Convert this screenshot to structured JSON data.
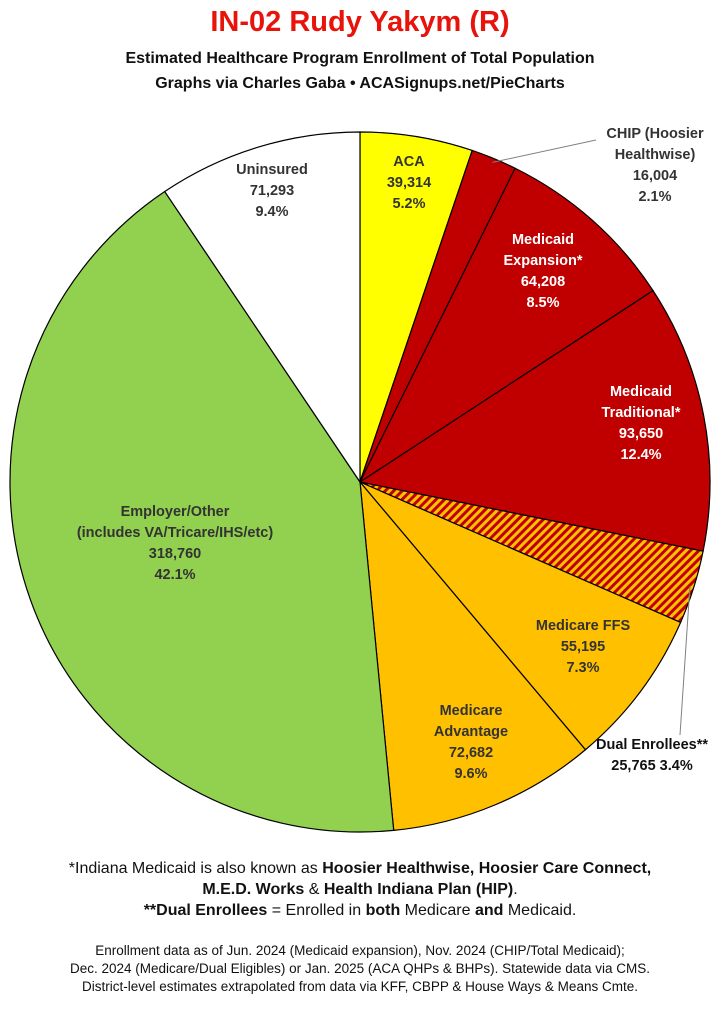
{
  "title": "IN-02 Rudy Yakym (R)",
  "subtitle_line1": "Estimated Healthcare Program Enrollment of Total Population",
  "subtitle_line2": "Graphs via Charles Gaba  •  ACASignups.net/PieCharts",
  "colors": {
    "title": "#e8140c",
    "aca": "#ffff00",
    "medicaid": "#c00000",
    "medicare": "#ffc000",
    "employer": "#92d050",
    "uninsured": "#ffffff",
    "dual_stripe_a": "#c00000",
    "dual_stripe_b": "#ffc000"
  },
  "chart_data": {
    "type": "pie",
    "title": "IN-02 Rudy Yakym (R)",
    "subtitle": "Estimated Healthcare Program Enrollment of Total Population",
    "start": "12 o'clock",
    "direction": "clockwise",
    "slices": [
      {
        "key": "aca",
        "label": "ACA",
        "value": 39314,
        "value_text": "39,314",
        "percent": 5.2,
        "percent_text": "5.2%",
        "color": "#ffff00",
        "text_color": "#333333"
      },
      {
        "key": "chip",
        "label": "CHIP (Hoosier Healthwise)",
        "value": 16004,
        "value_text": "16,004",
        "percent": 2.1,
        "percent_text": "2.1%",
        "color": "#c00000",
        "text_color": "#333333"
      },
      {
        "key": "medicaid_expansion",
        "label": "Medicaid Expansion*",
        "value": 64208,
        "value_text": "64,208",
        "percent": 8.5,
        "percent_text": "8.5%",
        "color": "#c00000",
        "text_color": "#ffffff"
      },
      {
        "key": "medicaid_traditional",
        "label": "Medicaid Traditional*",
        "value": 93650,
        "value_text": "93,650",
        "percent": 12.4,
        "percent_text": "12.4%",
        "color": "#c00000",
        "text_color": "#ffffff"
      },
      {
        "key": "dual",
        "label": "Dual Enrollees**",
        "value": 25765,
        "value_text": "25,765",
        "percent": 3.4,
        "percent_text": "3.4%",
        "color": "striped",
        "text_color": "#111111"
      },
      {
        "key": "medicare_ffs",
        "label": "Medicare FFS",
        "value": 55195,
        "value_text": "55,195",
        "percent": 7.3,
        "percent_text": "7.3%",
        "color": "#ffc000",
        "text_color": "#333333"
      },
      {
        "key": "medicare_advantage",
        "label": "Medicare Advantage",
        "value": 72682,
        "value_text": "72,682",
        "percent": 9.6,
        "percent_text": "9.6%",
        "color": "#ffc000",
        "text_color": "#333333"
      },
      {
        "key": "employer",
        "label": "Employer/Other (includes VA/Tricare/IHS/etc)",
        "value": 318760,
        "value_text": "318,760",
        "percent": 42.1,
        "percent_text": "42.1%",
        "color": "#92d050",
        "text_color": "#333333"
      },
      {
        "key": "uninsured",
        "label": "Uninsured",
        "value": 71293,
        "value_text": "71,293",
        "percent": 9.4,
        "percent_text": "9.4%",
        "color": "#ffffff",
        "text_color": "#333333"
      }
    ]
  },
  "labels": {
    "aca": [
      "ACA",
      "39,314",
      "5.2%"
    ],
    "chip": [
      "CHIP (Hoosier",
      "Healthwise)",
      "16,004",
      "2.1%"
    ],
    "medicaid_expansion": [
      "Medicaid",
      "Expansion*",
      "64,208",
      "8.5%"
    ],
    "medicaid_traditional": [
      "Medicaid",
      "Traditional*",
      "93,650",
      "12.4%"
    ],
    "dual": [
      "Dual Enrollees**",
      "25,765 3.4%"
    ],
    "medicare_ffs": [
      "Medicare FFS",
      "55,195",
      "7.3%"
    ],
    "medicare_advantage": [
      "Medicare",
      "Advantage",
      "72,682",
      "9.6%"
    ],
    "employer": [
      "Employer/Other",
      "(includes VA/Tricare/IHS/etc)",
      "318,760",
      "42.1%"
    ],
    "uninsured": [
      "Uninsured",
      "71,293",
      "9.4%"
    ]
  },
  "notes": {
    "line1_prefix": "*Indiana Medicaid is also known as ",
    "line1_bold": "Hoosier Healthwise, Hoosier Care Connect,",
    "line2_bold": "M.E.D. Works",
    "line2_mid": " & ",
    "line2_bold2": "Health Indiana Plan (HIP)",
    "line2_end": ".",
    "line3_bold": "**Dual Enrollees",
    "line3_mid": " = Enrolled in ",
    "line3_bold2": "both",
    "line3_mid2": " Medicare ",
    "line3_bold3": "and",
    "line3_end": " Medicaid."
  },
  "footer": {
    "line1": "Enrollment data as of Jun. 2024 (Medicaid expansion), Nov. 2024 (CHIP/Total Medicaid);",
    "line2": "Dec. 2024 (Medicare/Dual Eligibles) or Jan. 2025 (ACA QHPs & BHPs). Statewide data via CMS.",
    "line3": "District-level estimates extrapolated from data via KFF, CBPP & House Ways & Means Cmte."
  }
}
